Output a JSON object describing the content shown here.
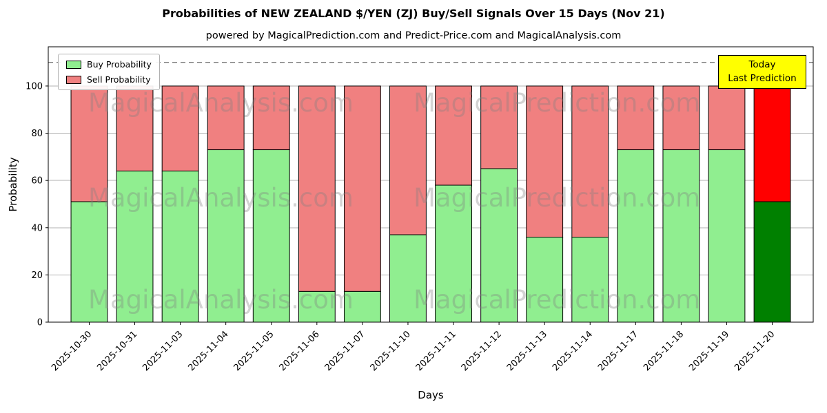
{
  "chart_data": {
    "type": "bar",
    "stacked": true,
    "title": "Probabilities of NEW ZEALAND $/YEN (ZJ) Buy/Sell Signals Over 15 Days (Nov 21)",
    "subtitle": "powered by MagicalPrediction.com and Predict-Price.com and MagicalAnalysis.com",
    "xlabel": "Days",
    "ylabel": "Probability",
    "categories": [
      "2025-10-30",
      "2025-10-31",
      "2025-11-03",
      "2025-11-04",
      "2025-11-05",
      "2025-11-06",
      "2025-11-07",
      "2025-11-10",
      "2025-11-11",
      "2025-11-12",
      "2025-11-13",
      "2025-11-14",
      "2025-11-17",
      "2025-11-18",
      "2025-11-19",
      "2025-11-20"
    ],
    "series": [
      {
        "name": "Buy Probability",
        "color": "#90ee90",
        "values": [
          51,
          64,
          64,
          73,
          73,
          13,
          13,
          37,
          58,
          65,
          36,
          36,
          73,
          73,
          73,
          51
        ]
      },
      {
        "name": "Sell Probability",
        "color": "#f08080",
        "values": [
          49,
          36,
          36,
          27,
          27,
          87,
          87,
          63,
          42,
          35,
          64,
          64,
          27,
          27,
          27,
          49
        ]
      }
    ],
    "last_bar_highlight": {
      "buy_color": "#008000",
      "sell_color": "#ff0000"
    },
    "yticks": [
      0,
      20,
      40,
      60,
      80,
      100
    ],
    "ylim": [
      0,
      116.6
    ],
    "dashed_line": {
      "y": 110,
      "color": "#7f7f7f"
    },
    "grid": "horizontal",
    "grid_color": "#b0b0b0",
    "bar_edge_color": "#000000",
    "legend_position": "upper left"
  },
  "watermarks": {
    "left": "MagicalAnalysis.com",
    "right": "MagicalPrediction.com",
    "color": "#808080",
    "opacity": 0.35
  },
  "today_box": {
    "line1": "Today",
    "line2": "Last Prediction",
    "bg_color": "#ffff00",
    "border_color": "#000000"
  }
}
